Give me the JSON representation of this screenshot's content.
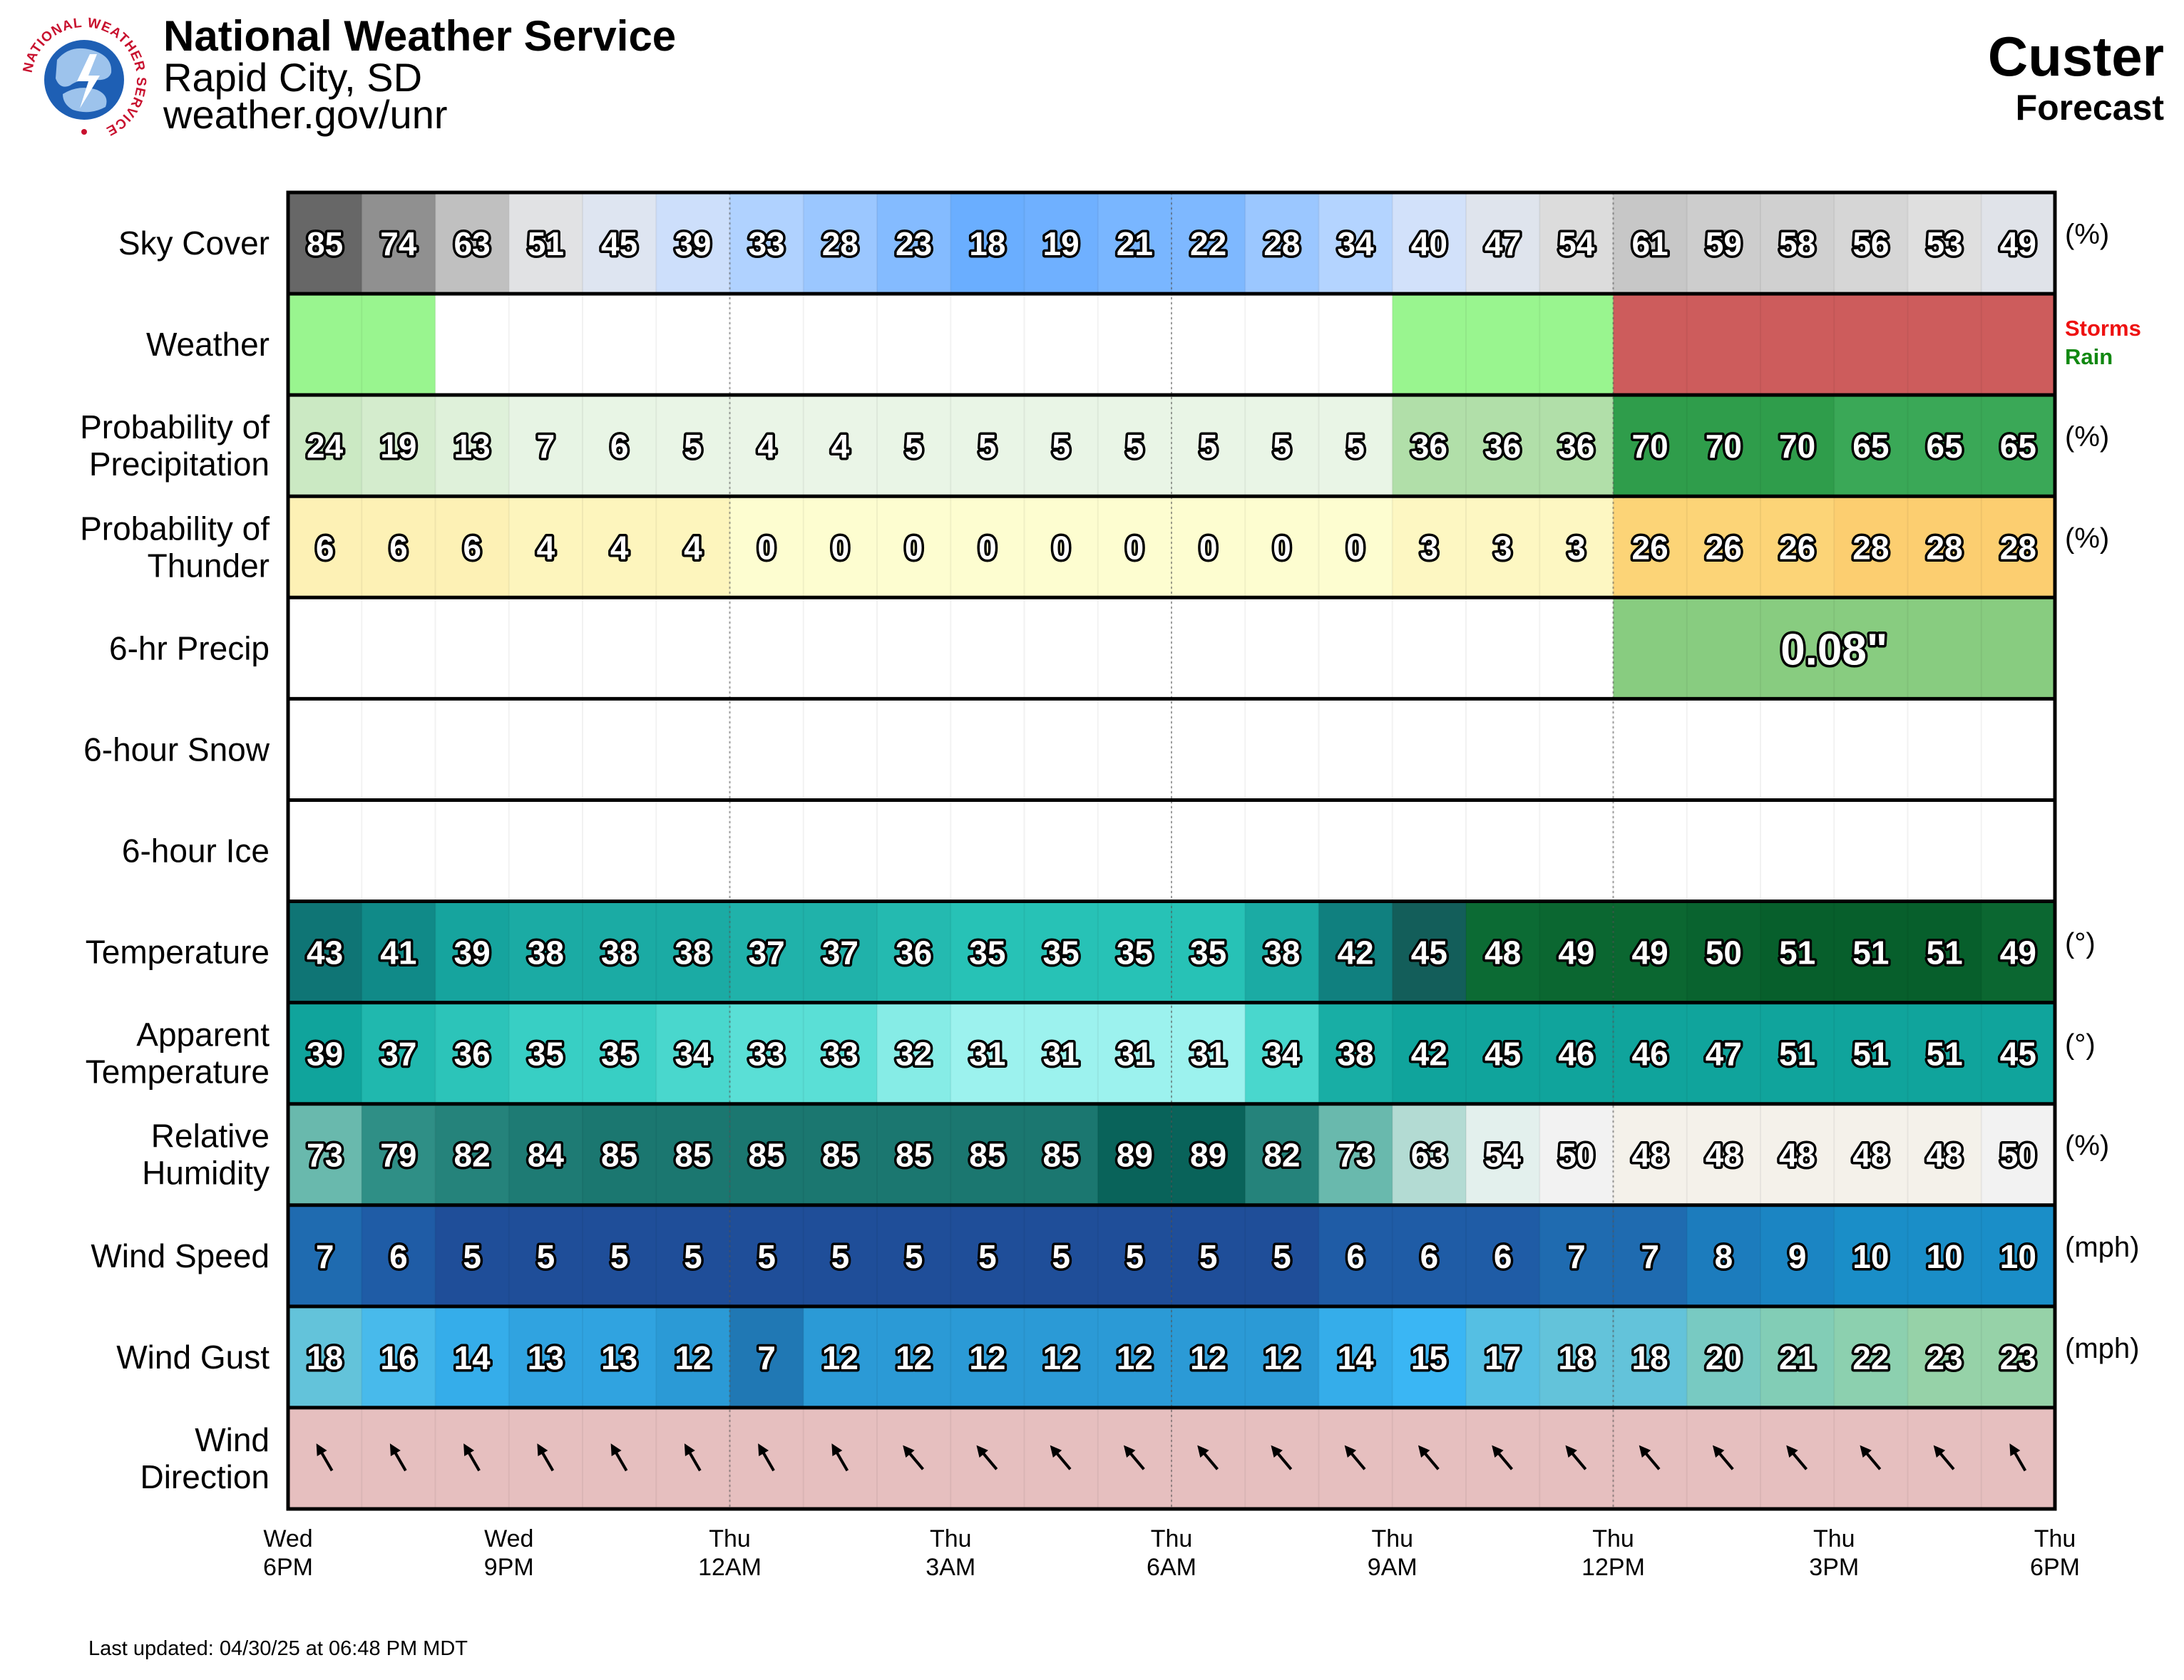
{
  "header": {
    "org": "National Weather Service",
    "office": "Rapid City, SD",
    "url": "weather.gov/unr",
    "location": "Custer",
    "subtitle": "Forecast",
    "logo_text": "NATIONAL WEATHER SERVICE"
  },
  "footer": {
    "updated": "Last updated: 04/30/25 at 06:48 PM MDT"
  },
  "chart_data": {
    "type": "table",
    "hours": 24,
    "time_labels": [
      {
        "hour": 0,
        "day": "Wed",
        "time": "6PM"
      },
      {
        "hour": 3,
        "day": "Wed",
        "time": "9PM"
      },
      {
        "hour": 6,
        "day": "Thu",
        "time": "12AM"
      },
      {
        "hour": 9,
        "day": "Thu",
        "time": "3AM"
      },
      {
        "hour": 12,
        "day": "Thu",
        "time": "6AM"
      },
      {
        "hour": 15,
        "day": "Thu",
        "time": "9AM"
      },
      {
        "hour": 18,
        "day": "Thu",
        "time": "12PM"
      },
      {
        "hour": 21,
        "day": "Thu",
        "time": "3PM"
      },
      {
        "hour": 24,
        "day": "Thu",
        "time": "6PM"
      }
    ],
    "rows": [
      {
        "label": [
          "Sky Cover"
        ],
        "unit": "(%)",
        "kind": "sky",
        "values": [
          85,
          74,
          63,
          51,
          45,
          39,
          33,
          28,
          23,
          18,
          19,
          21,
          22,
          28,
          34,
          40,
          47,
          54,
          61,
          59,
          58,
          56,
          53,
          49
        ]
      },
      {
        "label": [
          "Weather"
        ],
        "unit": "",
        "kind": "weather",
        "segments": [
          {
            "start": 0,
            "end": 2,
            "type": "Rain",
            "color": "#99f58f"
          },
          {
            "start": 15,
            "end": 18,
            "type": "Rain",
            "color": "#99f58f"
          },
          {
            "start": 18,
            "end": 24,
            "type": "Storms",
            "color": "#cd5c5c"
          }
        ],
        "legend": [
          {
            "text": "Storms",
            "color": "#ee1111"
          },
          {
            "text": "Rain",
            "color": "#118811"
          }
        ]
      },
      {
        "label": [
          "Probability of",
          "Precipitation"
        ],
        "unit": "(%)",
        "kind": "pop",
        "values": [
          24,
          19,
          13,
          7,
          6,
          5,
          4,
          4,
          5,
          5,
          5,
          5,
          5,
          5,
          5,
          36,
          36,
          36,
          70,
          70,
          70,
          65,
          65,
          65
        ]
      },
      {
        "label": [
          "Probability of",
          "Thunder"
        ],
        "unit": "(%)",
        "kind": "thunder",
        "values": [
          6,
          6,
          6,
          4,
          4,
          4,
          0,
          0,
          0,
          0,
          0,
          0,
          0,
          0,
          0,
          3,
          3,
          3,
          26,
          26,
          26,
          28,
          28,
          28
        ]
      },
      {
        "label": [
          "6-hr Precip"
        ],
        "unit": "",
        "kind": "qpf",
        "blocks": [
          {
            "start": 18,
            "end": 24,
            "text": "0.08\"",
            "color": "#88cc80"
          }
        ]
      },
      {
        "label": [
          "6-hour Snow"
        ],
        "unit": "",
        "kind": "empty"
      },
      {
        "label": [
          "6-hour Ice"
        ],
        "unit": "",
        "kind": "empty"
      },
      {
        "label": [
          "Temperature"
        ],
        "unit": "(°)",
        "kind": "temp",
        "values": [
          43,
          41,
          39,
          38,
          38,
          38,
          37,
          37,
          36,
          35,
          35,
          35,
          35,
          38,
          42,
          45,
          48,
          49,
          49,
          50,
          51,
          51,
          51,
          49
        ]
      },
      {
        "label": [
          "Apparent",
          "Temperature"
        ],
        "unit": "(°)",
        "kind": "apparent",
        "values": [
          39,
          37,
          36,
          35,
          35,
          34,
          33,
          33,
          32,
          31,
          31,
          31,
          31,
          34,
          38,
          42,
          45,
          46,
          46,
          47,
          51,
          51,
          51,
          45
        ]
      },
      {
        "label": [
          "Relative",
          "Humidity"
        ],
        "unit": "(%)",
        "kind": "rh",
        "values": [
          73,
          79,
          82,
          84,
          85,
          85,
          85,
          85,
          85,
          85,
          85,
          89,
          89,
          82,
          73,
          63,
          54,
          50,
          48,
          48,
          48,
          48,
          48,
          50
        ]
      },
      {
        "label": [
          "Wind Speed"
        ],
        "unit": "(mph)",
        "kind": "wind",
        "values": [
          7,
          6,
          5,
          5,
          5,
          5,
          5,
          5,
          5,
          5,
          5,
          5,
          5,
          5,
          6,
          6,
          6,
          7,
          7,
          8,
          9,
          10,
          10,
          10
        ]
      },
      {
        "label": [
          "Wind Gust"
        ],
        "unit": "(mph)",
        "kind": "gust",
        "values": [
          18,
          16,
          14,
          13,
          13,
          12,
          7,
          12,
          12,
          12,
          12,
          12,
          12,
          12,
          14,
          15,
          17,
          18,
          18,
          20,
          21,
          22,
          23,
          23
        ]
      },
      {
        "label": [
          "Wind",
          "Direction"
        ],
        "unit": "",
        "kind": "dir",
        "dir_deg": [
          330,
          330,
          330,
          330,
          330,
          330,
          330,
          330,
          320,
          320,
          320,
          320,
          320,
          320,
          320,
          320,
          320,
          320,
          320,
          320,
          320,
          320,
          320,
          330
        ],
        "color": "#e6bfbf"
      }
    ]
  }
}
